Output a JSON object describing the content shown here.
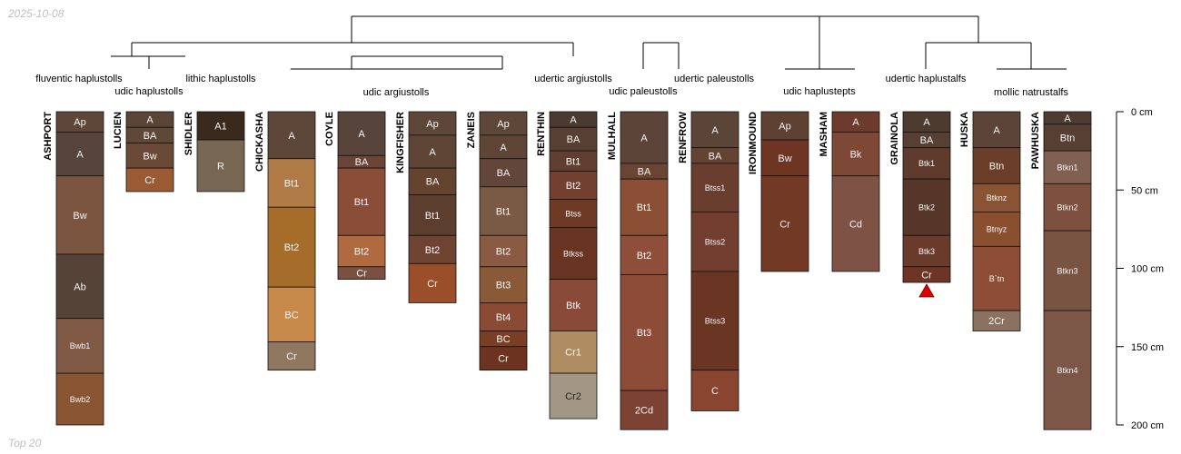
{
  "header": {
    "date": "2025-10-08"
  },
  "footer": {
    "caption": "Top 20"
  },
  "depth_axis": {
    "ticks": [
      {
        "depth": 0,
        "label": "0 cm"
      },
      {
        "depth": 50,
        "label": "50 cm"
      },
      {
        "depth": 100,
        "label": "100 cm"
      },
      {
        "depth": 150,
        "label": "150 cm"
      },
      {
        "depth": 200,
        "label": "200 cm"
      }
    ]
  },
  "taxa_labels": [
    {
      "name": "fluventic haplustolls"
    },
    {
      "name": "udic haplustolls"
    },
    {
      "name": "lithic haplustolls"
    },
    {
      "name": "udic argiustolls"
    },
    {
      "name": "udertic argiustolls"
    },
    {
      "name": "udic paleustolls"
    },
    {
      "name": "udertic paleustolls"
    },
    {
      "name": "udic haplustepts"
    },
    {
      "name": "udertic haplustalfs"
    },
    {
      "name": "mollic natrustalfs"
    }
  ],
  "profiles": [
    {
      "name": "ASHPORT",
      "horizons": [
        {
          "name": "Ap",
          "top": 0,
          "bottom": 13,
          "color": "#5e4738"
        },
        {
          "name": "A",
          "top": 13,
          "bottom": 41,
          "color": "#57453b"
        },
        {
          "name": "Bw",
          "top": 41,
          "bottom": 91,
          "color": "#7b5540"
        },
        {
          "name": "Ab",
          "top": 91,
          "bottom": 132,
          "color": "#564337"
        },
        {
          "name": "Bwb1",
          "top": 132,
          "bottom": 167,
          "color": "#805a45"
        },
        {
          "name": "Bwb2",
          "top": 167,
          "bottom": 200,
          "color": "#8a5533"
        }
      ]
    },
    {
      "name": "LUCIEN",
      "horizons": [
        {
          "name": "A",
          "top": 0,
          "bottom": 10,
          "color": "#5a4536"
        },
        {
          "name": "BA",
          "top": 10,
          "bottom": 20,
          "color": "#5f4837"
        },
        {
          "name": "Bw",
          "top": 20,
          "bottom": 36,
          "color": "#6a4a36"
        },
        {
          "name": "Cr",
          "top": 36,
          "bottom": 51,
          "color": "#9b5a34"
        }
      ]
    },
    {
      "name": "SHIDLER",
      "horizons": [
        {
          "name": "A1",
          "top": 0,
          "bottom": 18,
          "color": "#3a2a1d"
        },
        {
          "name": "R",
          "top": 18,
          "bottom": 51,
          "color": "#776651"
        }
      ]
    },
    {
      "name": "CHICKASHA",
      "horizons": [
        {
          "name": "A",
          "top": 0,
          "bottom": 30,
          "color": "#5c4738"
        },
        {
          "name": "Bt1",
          "top": 30,
          "bottom": 61,
          "color": "#b07a46"
        },
        {
          "name": "Bt2",
          "top": 61,
          "bottom": 112,
          "color": "#a66d2a"
        },
        {
          "name": "BC",
          "top": 112,
          "bottom": 147,
          "color": "#c88a4a"
        },
        {
          "name": "Cr",
          "top": 147,
          "bottom": 165,
          "color": "#8f7760"
        }
      ]
    },
    {
      "name": "COYLE",
      "horizons": [
        {
          "name": "A",
          "top": 0,
          "bottom": 28,
          "color": "#57453b"
        },
        {
          "name": "BA",
          "top": 28,
          "bottom": 36,
          "color": "#6a4537"
        },
        {
          "name": "Bt1",
          "top": 36,
          "bottom": 79,
          "color": "#8a4e38"
        },
        {
          "name": "Bt2",
          "top": 79,
          "bottom": 99,
          "color": "#b06a40"
        },
        {
          "name": "Cr",
          "top": 99,
          "bottom": 107,
          "color": "#7a5040"
        }
      ]
    },
    {
      "name": "KINGFISHER",
      "horizons": [
        {
          "name": "Ap",
          "top": 0,
          "bottom": 15,
          "color": "#5e4738"
        },
        {
          "name": "A",
          "top": 15,
          "bottom": 36,
          "color": "#5e4535"
        },
        {
          "name": "BA",
          "top": 36,
          "bottom": 53,
          "color": "#64432f"
        },
        {
          "name": "Bt1",
          "top": 53,
          "bottom": 79,
          "color": "#5b3e2d"
        },
        {
          "name": "Bt2",
          "top": 79,
          "bottom": 97,
          "color": "#6e4332"
        },
        {
          "name": "Cr",
          "top": 97,
          "bottom": 122,
          "color": "#9a4e2a"
        }
      ]
    },
    {
      "name": "ZANEIS",
      "horizons": [
        {
          "name": "Ap",
          "top": 0,
          "bottom": 15,
          "color": "#5e4738"
        },
        {
          "name": "A",
          "top": 15,
          "bottom": 30,
          "color": "#5e4535"
        },
        {
          "name": "BA",
          "top": 30,
          "bottom": 48,
          "color": "#62463a"
        },
        {
          "name": "Bt1",
          "top": 48,
          "bottom": 79,
          "color": "#7b5a45"
        },
        {
          "name": "Bt2",
          "top": 79,
          "bottom": 99,
          "color": "#8a5a42"
        },
        {
          "name": "Bt3",
          "top": 99,
          "bottom": 122,
          "color": "#8a5a38"
        },
        {
          "name": "Bt4",
          "top": 122,
          "bottom": 140,
          "color": "#8a4a34"
        },
        {
          "name": "BC",
          "top": 140,
          "bottom": 150,
          "color": "#7a3e24"
        },
        {
          "name": "Cr",
          "top": 150,
          "bottom": 165,
          "color": "#6b3320"
        }
      ]
    },
    {
      "name": "RENTHIN",
      "horizons": [
        {
          "name": "A",
          "top": 0,
          "bottom": 10,
          "color": "#4a3a30"
        },
        {
          "name": "BA",
          "top": 10,
          "bottom": 25,
          "color": "#583f33"
        },
        {
          "name": "Bt1",
          "top": 25,
          "bottom": 38,
          "color": "#603f30"
        },
        {
          "name": "Bt2",
          "top": 38,
          "bottom": 56,
          "color": "#73402f"
        },
        {
          "name": "Btss",
          "top": 56,
          "bottom": 74,
          "color": "#6e3a26"
        },
        {
          "name": "Btkss",
          "top": 74,
          "bottom": 107,
          "color": "#6a3423"
        },
        {
          "name": "Btk",
          "top": 107,
          "bottom": 140,
          "color": "#8a4a38"
        },
        {
          "name": "Cr1",
          "top": 140,
          "bottom": 167,
          "color": "#b08c62"
        },
        {
          "name": "Cr2",
          "top": 167,
          "bottom": 196,
          "color": "#a29684"
        }
      ]
    },
    {
      "name": "MULHALL",
      "horizons": [
        {
          "name": "A",
          "top": 0,
          "bottom": 33,
          "color": "#5c4538"
        },
        {
          "name": "BA",
          "top": 33,
          "bottom": 43,
          "color": "#6a4533"
        },
        {
          "name": "Bt1",
          "top": 43,
          "bottom": 79,
          "color": "#8a4f34"
        },
        {
          "name": "Bt2",
          "top": 79,
          "bottom": 104,
          "color": "#8e4e39"
        },
        {
          "name": "Bt3",
          "top": 104,
          "bottom": 178,
          "color": "#8c4c38"
        },
        {
          "name": "2Cd",
          "top": 178,
          "bottom": 203,
          "color": "#7c4234"
        }
      ]
    },
    {
      "name": "RENFROW",
      "horizons": [
        {
          "name": "A",
          "top": 0,
          "bottom": 23,
          "color": "#5a4538"
        },
        {
          "name": "BA",
          "top": 23,
          "bottom": 33,
          "color": "#644333"
        },
        {
          "name": "Btss1",
          "top": 33,
          "bottom": 64,
          "color": "#6a3e2e"
        },
        {
          "name": "Btss2",
          "top": 64,
          "bottom": 102,
          "color": "#713e30"
        },
        {
          "name": "Btss3",
          "top": 102,
          "bottom": 165,
          "color": "#6a3522"
        },
        {
          "name": "C",
          "top": 165,
          "bottom": 191,
          "color": "#8a4530"
        }
      ]
    },
    {
      "name": "IRONMOUND",
      "horizons": [
        {
          "name": "Ap",
          "top": 0,
          "bottom": 18,
          "color": "#5e4132"
        },
        {
          "name": "Bw",
          "top": 18,
          "bottom": 41,
          "color": "#6e3622"
        },
        {
          "name": "Cr",
          "top": 41,
          "bottom": 102,
          "color": "#723a24"
        }
      ]
    },
    {
      "name": "MASHAM",
      "horizons": [
        {
          "name": "A",
          "top": 0,
          "bottom": 13,
          "color": "#6d3a2e"
        },
        {
          "name": "Bk",
          "top": 13,
          "bottom": 41,
          "color": "#7e4836"
        },
        {
          "name": "Cd",
          "top": 41,
          "bottom": 102,
          "color": "#7e5244"
        }
      ]
    },
    {
      "name": "GRAINOLA",
      "horizons": [
        {
          "name": "A",
          "top": 0,
          "bottom": 13,
          "color": "#4e3b30"
        },
        {
          "name": "BA",
          "top": 13,
          "bottom": 23,
          "color": "#563f33"
        },
        {
          "name": "Btk1",
          "top": 23,
          "bottom": 43,
          "color": "#5e3b2d"
        },
        {
          "name": "Btk2",
          "top": 43,
          "bottom": 79,
          "color": "#553628"
        },
        {
          "name": "Btk3",
          "top": 79,
          "bottom": 99,
          "color": "#6a3a2a"
        },
        {
          "name": "Cr",
          "top": 99,
          "bottom": 109,
          "color": "#6e3526"
        }
      ]
    },
    {
      "name": "HUSKA",
      "horizons": [
        {
          "name": "A",
          "top": 0,
          "bottom": 23,
          "color": "#5c4538"
        },
        {
          "name": "Btn",
          "top": 23,
          "bottom": 46,
          "color": "#6a3e28"
        },
        {
          "name": "Btknz",
          "top": 46,
          "bottom": 64,
          "color": "#8a5434"
        },
        {
          "name": "Btnyz",
          "top": 64,
          "bottom": 86,
          "color": "#8a4f2e"
        },
        {
          "name": "B`tn",
          "top": 86,
          "bottom": 127,
          "color": "#8e4d36"
        },
        {
          "name": "2Cr",
          "top": 127,
          "bottom": 140,
          "color": "#8b7260"
        }
      ]
    },
    {
      "name": "PAWHUSKA",
      "horizons": [
        {
          "name": "A",
          "top": 0,
          "bottom": 8,
          "color": "#4e3c32"
        },
        {
          "name": "Btn",
          "top": 8,
          "bottom": 25,
          "color": "#573f33"
        },
        {
          "name": "Btkn1",
          "top": 25,
          "bottom": 46,
          "color": "#806050"
        },
        {
          "name": "Btkn2",
          "top": 46,
          "bottom": 76,
          "color": "#7e5040"
        },
        {
          "name": "Btkn3",
          "top": 76,
          "bottom": 127,
          "color": "#7a5442"
        },
        {
          "name": "Btkn4",
          "top": 127,
          "bottom": 203,
          "color": "#7c5747"
        }
      ]
    }
  ],
  "markers": [
    {
      "profile": "GRAINOLA",
      "depth": 109,
      "color": "#e00000"
    }
  ]
}
